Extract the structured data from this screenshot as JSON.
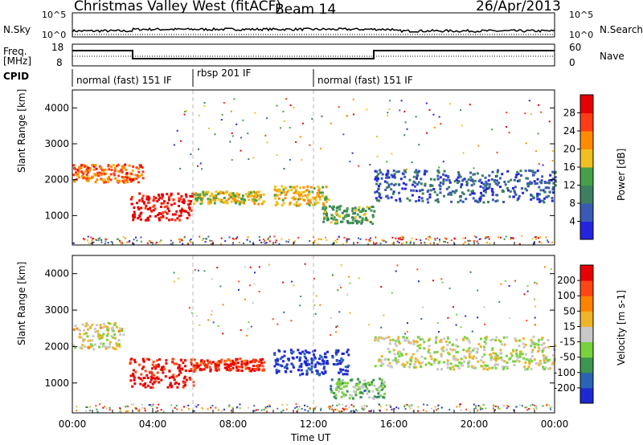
{
  "header": {
    "station": "Christmas Valley West (fitACF)",
    "beam": "Beam 14",
    "date": "26/Apr/2013"
  },
  "strips": {
    "nsky_label": "N.Sky",
    "nsearch_label": "N.Search",
    "freq_label_1": "Freq.",
    "freq_label_2": "[MHz]",
    "nave_label": "Nave",
    "cpid_label": "CPID",
    "noise_ticks": [
      "10^5",
      "10^0"
    ],
    "noise_right_ticks": [
      "10^5",
      "10^0"
    ],
    "freq_ticks": [
      "18",
      "8"
    ],
    "nave_ticks": [
      "60",
      "0"
    ]
  },
  "cpid": [
    {
      "label": "normal (fast) 151 IF",
      "start_h": 0,
      "end_h": 6
    },
    {
      "label": "rbsp 201 IF",
      "start_h": 6,
      "end_h": 12
    },
    {
      "label": "normal (fast) 151 IF",
      "start_h": 12,
      "end_h": 24
    }
  ],
  "chart_data": [
    {
      "type": "heatmap",
      "panel": "power",
      "ylabel": "Slant Range [km]",
      "y_ticks": [
        "4000",
        "3000",
        "2000",
        "1000"
      ],
      "ylim": [
        180,
        4500
      ],
      "xlim": [
        0,
        24
      ],
      "colorbar_label": "Power [dB]",
      "colorbar_ticks": [
        "28",
        "24",
        "20",
        "16",
        "12",
        "8",
        "4"
      ],
      "colors": [
        "#2424e0",
        "#3a5ab4",
        "#3c8060",
        "#46a046",
        "#f0c020",
        "#ff8c00",
        "#ff3c14",
        "#e60000"
      ],
      "bands": [
        {
          "h0": 0,
          "h1": 3.5,
          "r0": 1950,
          "r1": 2450,
          "level": 0.75
        },
        {
          "h0": 2.8,
          "h1": 6,
          "r0": 900,
          "r1": 1650,
          "level": 0.95
        },
        {
          "h0": 6,
          "h1": 9.5,
          "r0": 1350,
          "r1": 1700,
          "level": 0.55
        },
        {
          "h0": 10,
          "h1": 12.7,
          "r0": 1300,
          "r1": 1850,
          "level": 0.6
        },
        {
          "h0": 12.4,
          "h1": 15,
          "r0": 800,
          "r1": 1300,
          "level": 0.4
        },
        {
          "h0": 15,
          "h1": 24,
          "r0": 1400,
          "r1": 2300,
          "level": 0.2
        }
      ]
    },
    {
      "type": "heatmap",
      "panel": "velocity",
      "ylabel": "Slant Range [km]",
      "y_ticks": [
        "4000",
        "3000",
        "2000",
        "1000"
      ],
      "ylim": [
        180,
        4500
      ],
      "xlim": [
        0,
        24
      ],
      "xlabel": "Time UT",
      "x_ticks": [
        "00:00",
        "04:00",
        "08:00",
        "12:00",
        "16:00",
        "20:00",
        "00:00"
      ],
      "colorbar_label": "Velocity [m s-1]",
      "colorbar_ticks": [
        "200",
        "100",
        "50",
        "15",
        "-15",
        "-50",
        "-100",
        "-200"
      ],
      "colors": [
        "#1e28d2",
        "#2a64b4",
        "#3c9650",
        "#78d23c",
        "#c8c8c8",
        "#f0b428",
        "#ff8200",
        "#ff4614",
        "#e60000"
      ],
      "bands": [
        {
          "h0": 0,
          "h1": 2.5,
          "r0": 1950,
          "r1": 2700,
          "level": 0.55
        },
        {
          "h0": 2.8,
          "h1": 6,
          "r0": 900,
          "r1": 1700,
          "level": 0.95
        },
        {
          "h0": 6,
          "h1": 9.5,
          "r0": 1350,
          "r1": 1700,
          "level": 0.9
        },
        {
          "h0": 10,
          "h1": 13.7,
          "r0": 1250,
          "r1": 1950,
          "level": 0.05
        },
        {
          "h0": 12.8,
          "h1": 15.5,
          "r0": 600,
          "r1": 1150,
          "level": 0.35
        },
        {
          "h0": 15,
          "h1": 24,
          "r0": 1400,
          "r1": 2300,
          "level": 0.5
        }
      ]
    }
  ]
}
